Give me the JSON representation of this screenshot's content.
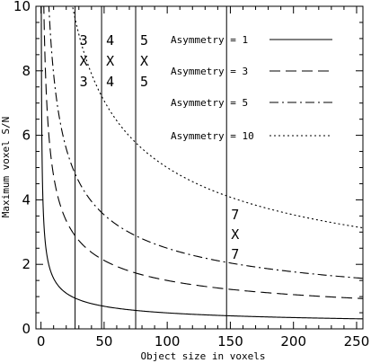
{
  "chart_data": {
    "type": "line",
    "xlabel": "Object size in voxels",
    "ylabel": "Maximum voxel S/N",
    "xlim": [
      -4,
      255
    ],
    "ylim": [
      0,
      10
    ],
    "xticks": [
      0,
      50,
      100,
      150,
      200,
      250
    ],
    "yticks": [
      0,
      2,
      4,
      6,
      8,
      10
    ],
    "grid": false,
    "legend_placement": "top-right",
    "series": [
      {
        "name": "Asymmetry = 1",
        "dash": "solid",
        "coef": 4.95
      },
      {
        "name": "Asymmetry = 3",
        "dash": "dashed",
        "coef": 15.0
      },
      {
        "name": "Asymmetry = 5",
        "dash": "dashdot",
        "coef": 25.0
      },
      {
        "name": "Asymmetry = 10",
        "dash": "dotted",
        "coef": 50.0
      }
    ],
    "function": "y = coef / sqrt(x)",
    "vertical_lines": [
      {
        "x": 27,
        "top": "3",
        "mid": "X",
        "bottom": "3"
      },
      {
        "x": 48,
        "top": "4",
        "mid": "X",
        "bottom": "4"
      },
      {
        "x": 75,
        "top": "5",
        "mid": "X",
        "bottom": "5"
      },
      {
        "x": 147,
        "top": "7",
        "mid": "X",
        "bottom": "7"
      }
    ]
  }
}
